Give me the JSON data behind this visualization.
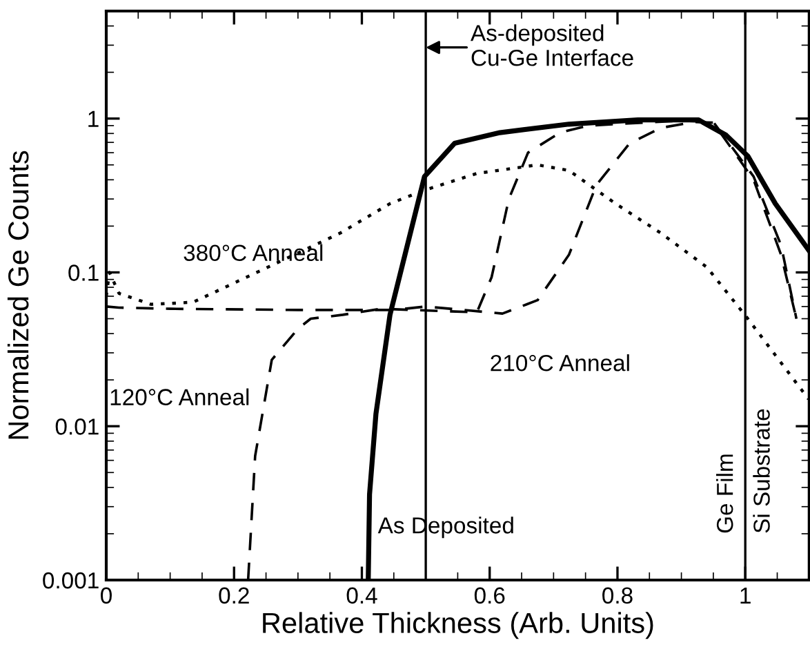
{
  "chart_data": {
    "type": "line",
    "xlabel": "Relative Thickness (Arb. Units)",
    "ylabel": "Normalized Ge Counts",
    "log": "y",
    "xlim": [
      0,
      1.1
    ],
    "ylim": [
      0.001,
      5
    ],
    "xticks": [
      0,
      0.2,
      0.4,
      0.6,
      0.8,
      1
    ],
    "yticks": [
      0.001,
      0.01,
      0.1,
      1
    ],
    "grid": false,
    "legend": false,
    "marker": "none",
    "series": [
      {
        "name": "As Deposited",
        "color": "#000000",
        "line_style": "solid",
        "x": [
          0.41,
          0.412,
          0.422,
          0.444,
          0.498,
          0.545,
          0.616,
          0.724,
          0.832,
          0.927,
          0.97,
          1.004,
          1.047,
          1.099
        ],
        "values": [
          0.001,
          0.0036,
          0.012,
          0.053,
          0.42,
          0.69,
          0.81,
          0.92,
          0.98,
          0.98,
          0.78,
          0.57,
          0.28,
          0.14
        ]
      },
      {
        "name": "120°C Anneal",
        "color": "#000000",
        "line_style": "dashed",
        "x": [
          0.222,
          0.233,
          0.259,
          0.3,
          0.32,
          0.37,
          0.43,
          0.58,
          0.603,
          0.63,
          0.66,
          0.71,
          0.754,
          0.9,
          0.95,
          1.013,
          1.056,
          1.08
        ],
        "values": [
          0.001,
          0.0064,
          0.027,
          0.043,
          0.05,
          0.053,
          0.058,
          0.055,
          0.093,
          0.3,
          0.6,
          0.81,
          0.9,
          0.97,
          0.95,
          0.42,
          0.15,
          0.05
        ]
      },
      {
        "name": "210°C Anneal",
        "color": "#000000",
        "line_style": "dashed",
        "x": [
          0,
          0.02,
          0.1,
          0.3,
          0.45,
          0.5,
          0.62,
          0.675,
          0.724,
          0.767,
          0.819,
          0.868,
          0.92,
          0.95,
          1.013,
          1.056,
          1.08
        ],
        "values": [
          0.06,
          0.059,
          0.058,
          0.057,
          0.057,
          0.06,
          0.054,
          0.066,
          0.13,
          0.37,
          0.69,
          0.87,
          0.95,
          0.94,
          0.4,
          0.13,
          0.05
        ]
      },
      {
        "name": "380°C Anneal",
        "color": "#000000",
        "line_style": "dotted",
        "x": [
          0,
          0.005,
          0.02,
          0.07,
          0.136,
          0.207,
          0.28,
          0.366,
          0.444,
          0.496,
          0.58,
          0.675,
          0.724,
          0.797,
          0.868,
          0.94,
          1.004,
          1.047,
          1.099
        ],
        "values": [
          0.07,
          0.1,
          0.073,
          0.062,
          0.064,
          0.088,
          0.122,
          0.18,
          0.28,
          0.34,
          0.44,
          0.5,
          0.46,
          0.28,
          0.18,
          0.108,
          0.05,
          0.029,
          0.015
        ]
      }
    ],
    "ref_lines": [
      {
        "axis": "x",
        "value": 0.5,
        "label": "As-deposited\nCu-Ge Interface",
        "color": "#000000",
        "line_style": "solid"
      },
      {
        "axis": "x",
        "value": 1,
        "label": null,
        "color": "#000000",
        "line_style": "solid"
      }
    ],
    "annotations": [
      {
        "text": "Ge Film",
        "x": 1,
        "y": 0.002
      },
      {
        "text": "Si Substrate",
        "x": 1,
        "y": 0.002
      }
    ]
  }
}
